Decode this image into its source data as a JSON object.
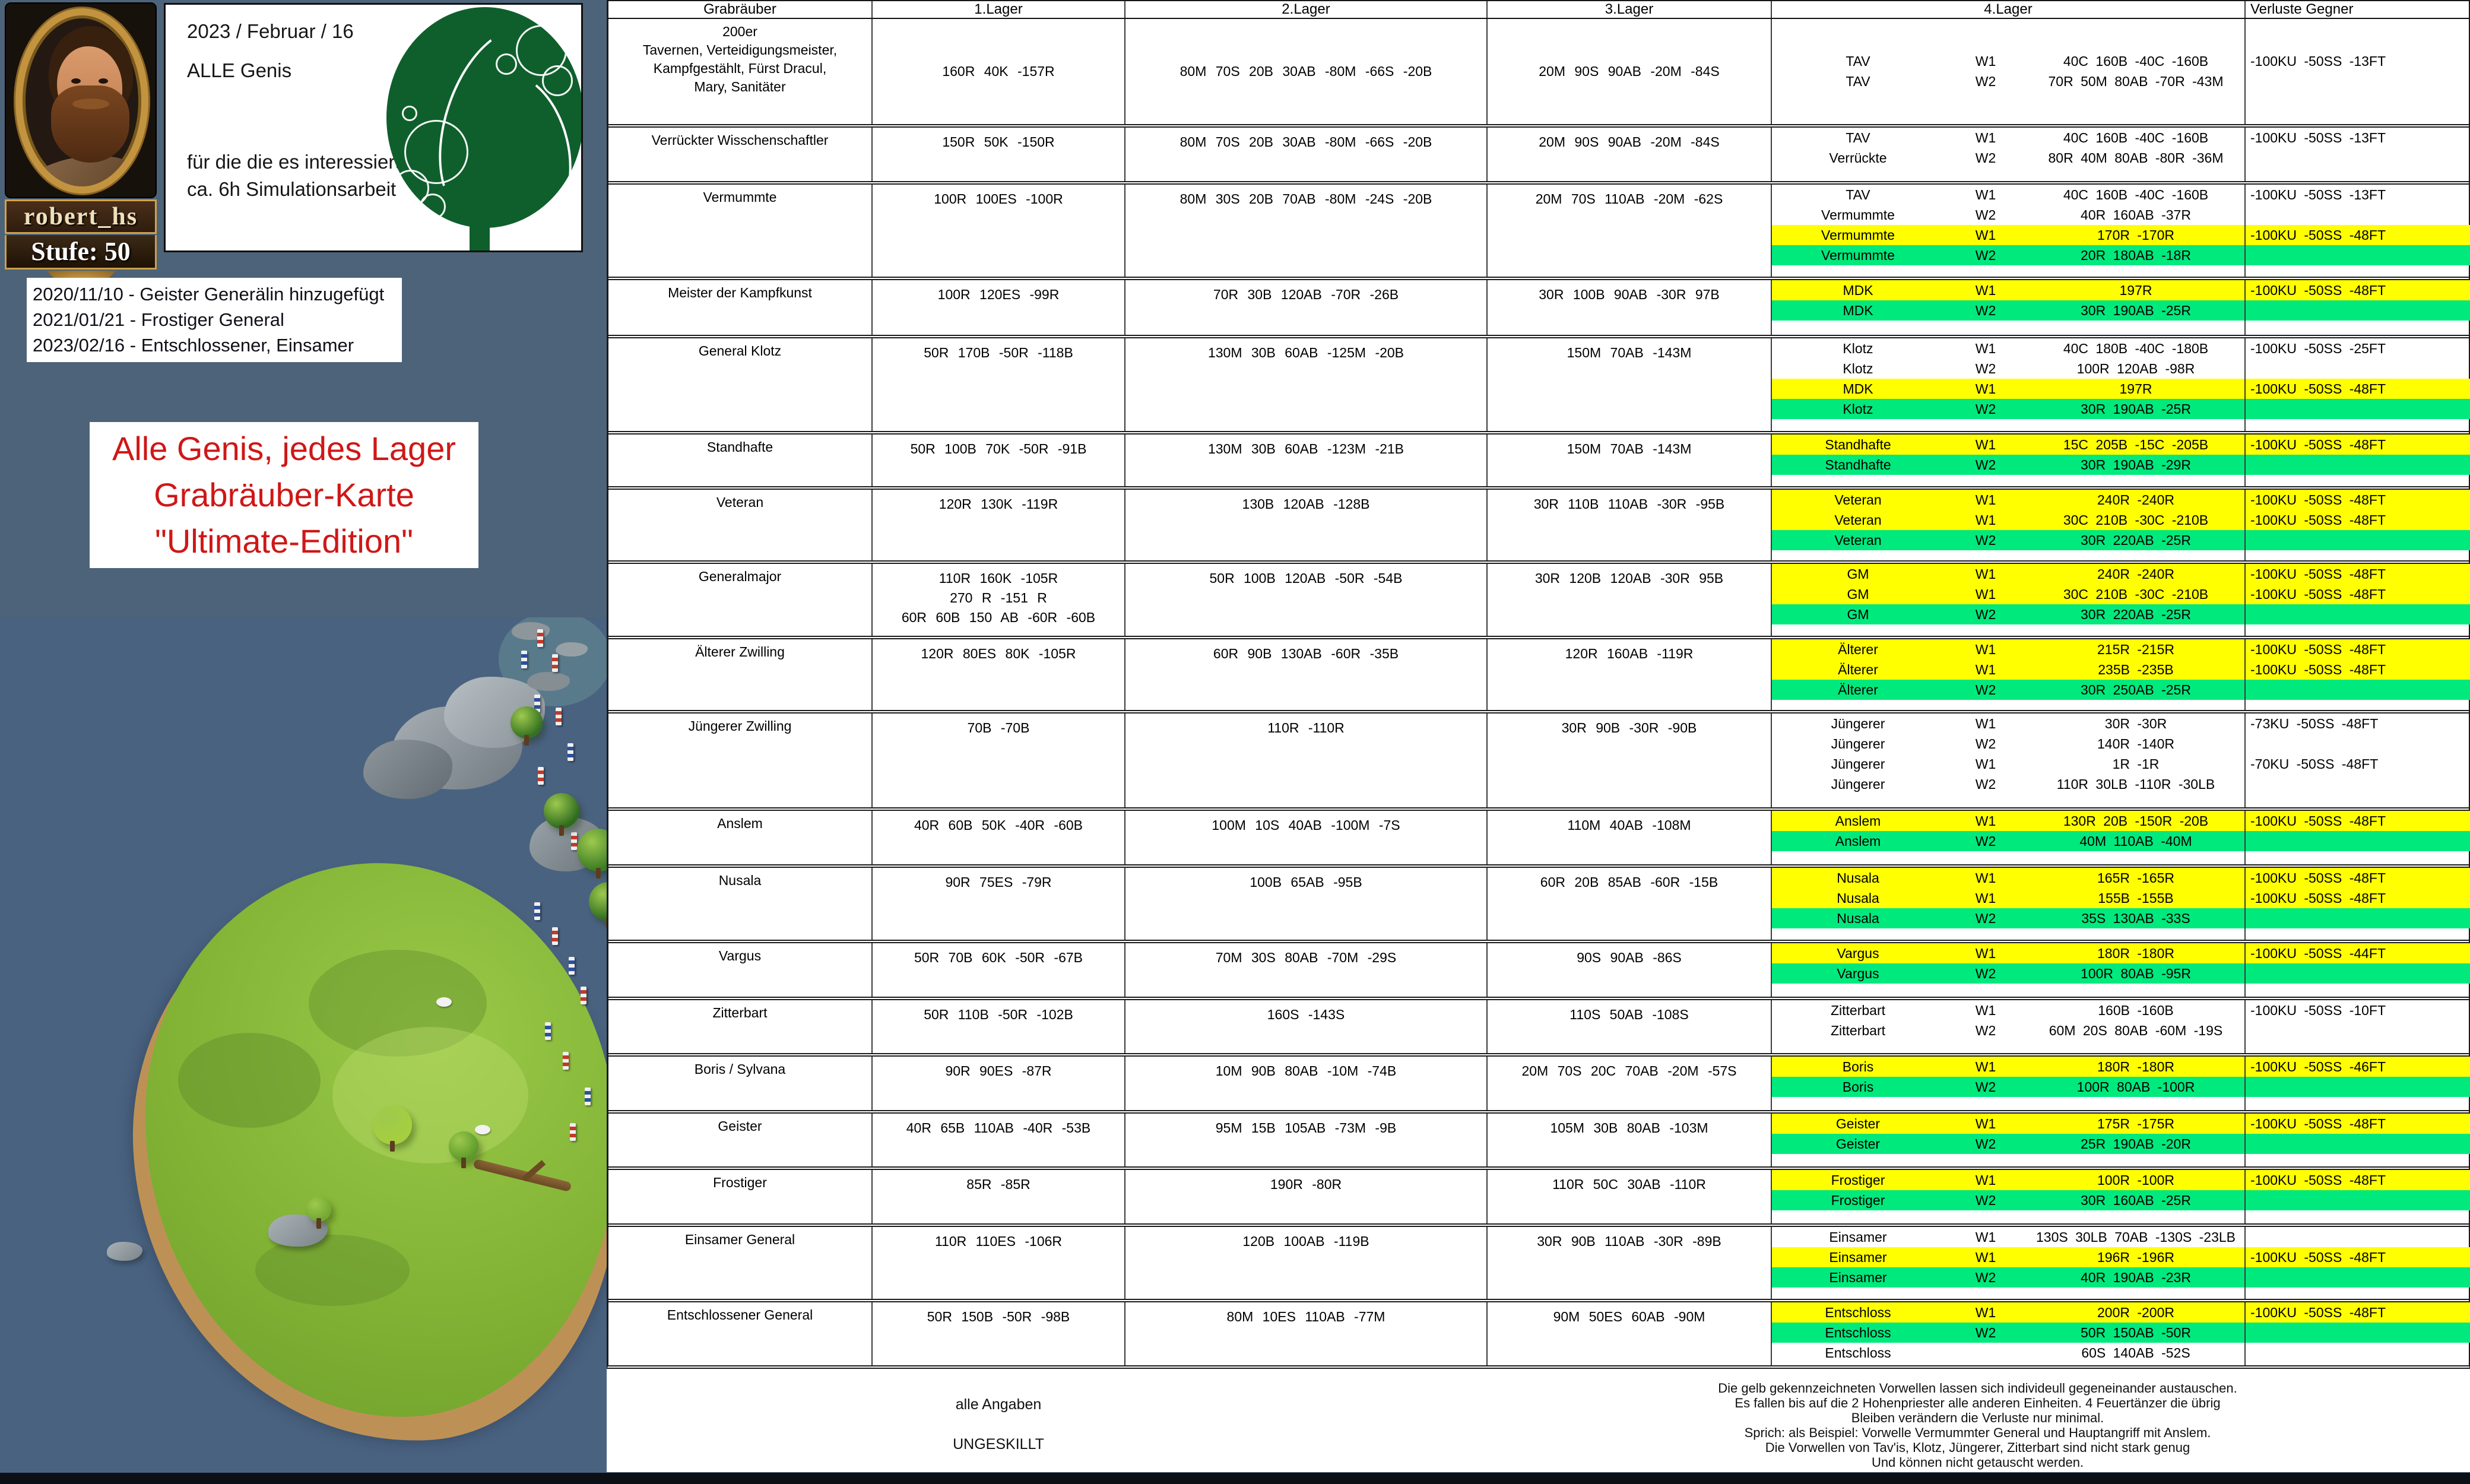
{
  "profile": {
    "username": "robert_hs",
    "level": "Stufe: 50"
  },
  "header_box": {
    "date": "2023 / Februar / 16",
    "subject": "ALLE Genis",
    "note1": "für die die es interessiert",
    "note2": "ca. 6h Simulationsarbeit"
  },
  "changelog": [
    "2020/11/10 - Geister Generälin hinzugefügt",
    "2021/01/21 - Frostiger General",
    "2023/02/16 - Entschlossener, Einsamer"
  ],
  "title_box": {
    "lines": [
      "Alle Genis, jedes Lager",
      "Grabräuber-Karte",
      "\"Ultimate-Edition\""
    ],
    "color": "#cf1717"
  },
  "colors": {
    "highlight_yellow": "#ffff00",
    "highlight_green": "#00e97d",
    "ocean": "#496280",
    "grass": "#82b335",
    "slate_background": "#4d6379"
  },
  "table": {
    "columns": [
      "Grabräuber",
      "1.Lager",
      "2.Lager",
      "3.Lager",
      "4.Lager",
      "Verluste Gegner"
    ],
    "rows": [
      {
        "name_lines": [
          "200er",
          "Tavernen,  Verteidigungsmeister,",
          "Kampfgestählt,  Fürst Dracul,",
          "Mary,   Sanitäter"
        ],
        "center": true,
        "lager1": [
          "160R  40K  -157R"
        ],
        "lager2": [
          "80M  70S  20B  30AB  -80M  -66S  -20B"
        ],
        "lager3": [
          "20M  90S  90AB  -20M  -84S"
        ],
        "waves": [
          {
            "gen": "TAV",
            "w": "W1",
            "val": "40C  160B  -40C  -160B",
            "hl": "w",
            "loss": "-100KU  -50SS  -13FT",
            "loss_hl": "w"
          },
          {
            "gen": "TAV",
            "w": "W2",
            "val": "70R  50M  80AB  -70R  -43M",
            "hl": "w",
            "loss": "",
            "loss_hl": "w"
          }
        ]
      },
      {
        "name_lines": [
          "Verrückter Wisschenschaftler"
        ],
        "lager1": [
          "150R  50K  -150R"
        ],
        "lager2": [
          "80M  70S  20B  30AB  -80M  -66S  -20B"
        ],
        "lager3": [
          "20M  90S  90AB  -20M  -84S"
        ],
        "waves": [
          {
            "gen": "TAV",
            "w": "W1",
            "val": "40C  160B  -40C  -160B",
            "hl": "w",
            "loss": "-100KU  -50SS  -13FT",
            "loss_hl": "w"
          },
          {
            "gen": "Verrückte",
            "w": "W2",
            "val": "80R  40M  80AB  -80R  -36M",
            "hl": "w",
            "loss": "",
            "loss_hl": "w"
          }
        ]
      },
      {
        "name_lines": [
          "Vermummte"
        ],
        "lager1": [
          "100R  100ES  -100R"
        ],
        "lager2": [
          "80M  30S  20B  70AB  -80M  -24S  -20B"
        ],
        "lager3": [
          "20M  70S  110AB  -20M  -62S"
        ],
        "waves": [
          {
            "gen": "TAV",
            "w": "W1",
            "val": "40C  160B  -40C  -160B",
            "hl": "w",
            "loss": "-100KU  -50SS  -13FT",
            "loss_hl": "w"
          },
          {
            "gen": "Vermummte",
            "w": "W2",
            "val": "40R  160AB  -37R",
            "hl": "w",
            "loss": "",
            "loss_hl": "w"
          },
          {
            "gen": "Vermummte",
            "w": "W1",
            "val": "170R  -170R",
            "hl": "y",
            "loss": "-100KU  -50SS  -48FT",
            "loss_hl": "y"
          },
          {
            "gen": "Vermummte",
            "w": "W2",
            "val": "20R  180AB  -18R",
            "hl": "g",
            "loss": "",
            "loss_hl": "g"
          }
        ]
      },
      {
        "name_lines": [
          "Meister der Kampfkunst"
        ],
        "lager1": [
          "100R  120ES  -99R"
        ],
        "lager2": [
          "70R  30B  120AB  -70R  -26B"
        ],
        "lager3": [
          "30R  100B  90AB  -30R  97B"
        ],
        "waves": [
          {
            "gen": "MDK",
            "w": "W1",
            "val": "197R",
            "hl": "y",
            "loss": "-100KU  -50SS  -48FT",
            "loss_hl": "y"
          },
          {
            "gen": "MDK",
            "w": "W2",
            "val": "30R  190AB  -25R",
            "hl": "g",
            "loss": "",
            "loss_hl": "g"
          }
        ]
      },
      {
        "name_lines": [
          "General Klotz"
        ],
        "lager1": [
          "50R  170B  -50R  -118B"
        ],
        "lager2": [
          "130M  30B  60AB  -125M  -20B"
        ],
        "lager3": [
          "150M  70AB  -143M"
        ],
        "waves": [
          {
            "gen": "Klotz",
            "w": "W1",
            "val": "40C  180B  -40C  -180B",
            "hl": "w",
            "loss": "-100KU  -50SS  -25FT",
            "loss_hl": "w"
          },
          {
            "gen": "Klotz",
            "w": "W2",
            "val": "100R  120AB  -98R",
            "hl": "w",
            "loss": "",
            "loss_hl": "w"
          },
          {
            "gen": "MDK",
            "w": "W1",
            "val": "197R",
            "hl": "y",
            "loss": "-100KU  -50SS  -48FT",
            "loss_hl": "y"
          },
          {
            "gen": "Klotz",
            "w": "W2",
            "val": "30R  190AB  -25R",
            "hl": "g",
            "loss": "",
            "loss_hl": "g"
          }
        ]
      },
      {
        "name_lines": [
          "Standhafte"
        ],
        "lager1": [
          "50R  100B  70K  -50R  -91B"
        ],
        "lager2": [
          "130M  30B  60AB  -123M  -21B"
        ],
        "lager3": [
          "150M  70AB  -143M"
        ],
        "waves": [
          {
            "gen": "Standhafte",
            "w": "W1",
            "val": "15C  205B  -15C  -205B",
            "hl": "y",
            "loss": "-100KU  -50SS  -48FT",
            "loss_hl": "y"
          },
          {
            "gen": "Standhafte",
            "w": "W2",
            "val": "30R  190AB  -29R",
            "hl": "g",
            "loss": "",
            "loss_hl": "g"
          }
        ]
      },
      {
        "name_lines": [
          "Veteran"
        ],
        "lager1": [
          "120R  130K  -119R"
        ],
        "lager2": [
          "130B  120AB  -128B"
        ],
        "lager3": [
          "30R  110B  110AB  -30R  -95B"
        ],
        "waves": [
          {
            "gen": "Veteran",
            "w": "W1",
            "val": "240R  -240R",
            "hl": "y",
            "loss": "-100KU  -50SS  -48FT",
            "loss_hl": "y"
          },
          {
            "gen": "Veteran",
            "w": "W1",
            "val": "30C  210B  -30C  -210B",
            "hl": "y",
            "loss": "-100KU  -50SS  -48FT",
            "loss_hl": "y"
          },
          {
            "gen": "Veteran",
            "w": "W2",
            "val": "30R  220AB  -25R",
            "hl": "g",
            "loss": "",
            "loss_hl": "g"
          }
        ]
      },
      {
        "name_lines": [
          "Generalmajor"
        ],
        "lager1": [
          "110R  160K  -105R",
          "270 R  -151 R",
          "60R  60B  150 AB  -60R  -60B"
        ],
        "lager2": [
          "50R  100B  120AB  -50R  -54B"
        ],
        "lager3": [
          "30R  120B  120AB  -30R  95B"
        ],
        "waves": [
          {
            "gen": "GM",
            "w": "W1",
            "val": "240R  -240R",
            "hl": "y",
            "loss": "-100KU  -50SS  -48FT",
            "loss_hl": "y"
          },
          {
            "gen": "GM",
            "w": "W1",
            "val": "30C  210B  -30C  -210B",
            "hl": "y",
            "loss": "-100KU  -50SS  -48FT",
            "loss_hl": "y"
          },
          {
            "gen": "GM",
            "w": "W2",
            "val": "30R  220AB  -25R",
            "hl": "g",
            "loss": "",
            "loss_hl": "g"
          }
        ]
      },
      {
        "name_lines": [
          "Älterer Zwilling"
        ],
        "lager1": [
          "120R  80ES  80K  -105R"
        ],
        "lager2": [
          "60R  90B  130AB  -60R  -35B"
        ],
        "lager3": [
          "120R  160AB  -119R"
        ],
        "waves": [
          {
            "gen": "Älterer",
            "w": "W1",
            "val": "215R  -215R",
            "hl": "y",
            "loss": "-100KU  -50SS  -48FT",
            "loss_hl": "y"
          },
          {
            "gen": "Älterer",
            "w": "W1",
            "val": "235B  -235B",
            "hl": "y",
            "loss": "-100KU  -50SS  -48FT",
            "loss_hl": "y"
          },
          {
            "gen": "Älterer",
            "w": "W2",
            "val": "30R  250AB  -25R",
            "hl": "g",
            "loss": "",
            "loss_hl": "g"
          }
        ]
      },
      {
        "name_lines": [
          "Jüngerer Zwilling"
        ],
        "lager1": [
          "70B  -70B"
        ],
        "lager2": [
          "110R  -110R"
        ],
        "lager3": [
          "30R  90B  -30R  -90B"
        ],
        "waves": [
          {
            "gen": "Jüngerer",
            "w": "W1",
            "val": "30R  -30R",
            "hl": "w",
            "loss": "-73KU  -50SS  -48FT",
            "loss_hl": "w"
          },
          {
            "gen": "Jüngerer",
            "w": "W2",
            "val": "140R  -140R",
            "hl": "w",
            "loss": "",
            "loss_hl": "w"
          },
          {
            "gen": "Jüngerer",
            "w": "W1",
            "val": "1R  -1R",
            "hl": "w",
            "loss": "-70KU  -50SS  -48FT",
            "loss_hl": "w"
          },
          {
            "gen": "Jüngerer",
            "w": "W2",
            "val": "110R  30LB  -110R  -30LB",
            "hl": "w",
            "loss": "",
            "loss_hl": "w"
          }
        ]
      },
      {
        "name_lines": [
          "Anslem"
        ],
        "lager1": [
          "40R  60B  50K  -40R   -60B"
        ],
        "lager2": [
          "100M  10S  40AB  -100M  -7S"
        ],
        "lager3": [
          "110M  40AB  -108M"
        ],
        "waves": [
          {
            "gen": "Anslem",
            "w": "W1",
            "val": "130R  20B  -150R  -20B",
            "hl": "y",
            "loss": "-100KU  -50SS  -48FT",
            "loss_hl": "y"
          },
          {
            "gen": "Anslem",
            "w": "W2",
            "val": "40M  110AB  -40M",
            "hl": "g",
            "loss": "",
            "loss_hl": "g"
          }
        ]
      },
      {
        "name_lines": [
          "Nusala"
        ],
        "lager1": [
          "90R  75ES  -79R"
        ],
        "lager2": [
          "100B  65AB  -95B"
        ],
        "lager3": [
          "60R  20B  85AB  -60R  -15B"
        ],
        "waves": [
          {
            "gen": "Nusala",
            "w": "W1",
            "val": "165R  -165R",
            "hl": "y",
            "loss": "-100KU  -50SS  -48FT",
            "loss_hl": "y"
          },
          {
            "gen": "Nusala",
            "w": "W1",
            "val": "155B  -155B",
            "hl": "y",
            "loss": "-100KU  -50SS  -48FT",
            "loss_hl": "y"
          },
          {
            "gen": "Nusala",
            "w": "W2",
            "val": "35S  130AB  -33S",
            "hl": "g",
            "loss": "",
            "loss_hl": "g"
          }
        ]
      },
      {
        "name_lines": [
          "Vargus"
        ],
        "lager1": [
          "50R  70B  60K  -50R  -67B"
        ],
        "lager2": [
          "70M  30S  80AB  -70M  -29S"
        ],
        "lager3": [
          "90S  90AB  -86S"
        ],
        "waves": [
          {
            "gen": "Vargus",
            "w": "W1",
            "val": "180R  -180R",
            "hl": "y",
            "loss": "-100KU  -50SS  -44FT",
            "loss_hl": "y"
          },
          {
            "gen": "Vargus",
            "w": "W2",
            "val": "100R  80AB  -95R",
            "hl": "g",
            "loss": "",
            "loss_hl": "g"
          }
        ]
      },
      {
        "name_lines": [
          "Zitterbart"
        ],
        "lager1": [
          "50R  110B  -50R  -102B"
        ],
        "lager2": [
          "160S  -143S"
        ],
        "lager3": [
          "110S  50AB  -108S"
        ],
        "waves": [
          {
            "gen": "Zitterbart",
            "w": "W1",
            "val": "160B  -160B",
            "hl": "w",
            "loss": "-100KU  -50SS  -10FT",
            "loss_hl": "w"
          },
          {
            "gen": "Zitterbart",
            "w": "W2",
            "val": "60M  20S  80AB  -60M  -19S",
            "hl": "w",
            "loss": "",
            "loss_hl": "w"
          }
        ]
      },
      {
        "name_lines": [
          "Boris / Sylvana"
        ],
        "lager1": [
          "90R  90ES  -87R"
        ],
        "lager2": [
          "10M  90B  80AB  -10M  -74B"
        ],
        "lager3": [
          "20M  70S  20C  70AB  -20M  -57S"
        ],
        "waves": [
          {
            "gen": "Boris",
            "w": "W1",
            "val": "180R  -180R",
            "hl": "y",
            "loss": "-100KU  -50SS  -46FT",
            "loss_hl": "y"
          },
          {
            "gen": "Boris",
            "w": "W2",
            "val": "100R  80AB  -100R",
            "hl": "g",
            "loss": "",
            "loss_hl": "g"
          }
        ]
      },
      {
        "name_lines": [
          "Geister"
        ],
        "lager1": [
          "40R  65B  110AB  -40R  -53B"
        ],
        "lager2": [
          "95M  15B  105AB  -73M  -9B"
        ],
        "lager3": [
          "105M  30B  80AB  -103M"
        ],
        "waves": [
          {
            "gen": "Geister",
            "w": "W1",
            "val": "175R  -175R",
            "hl": "y",
            "loss": "-100KU  -50SS  -48FT",
            "loss_hl": "y"
          },
          {
            "gen": "Geister",
            "w": "W2",
            "val": "25R  190AB  -20R",
            "hl": "g",
            "loss": "",
            "loss_hl": "g"
          }
        ]
      },
      {
        "name_lines": [
          "Frostiger"
        ],
        "lager1": [
          "85R  -85R"
        ],
        "lager2": [
          "190R  -80R"
        ],
        "lager3": [
          "110R  50C  30AB  -110R"
        ],
        "waves": [
          {
            "gen": "Frostiger",
            "w": "W1",
            "val": "100R  -100R",
            "hl": "y",
            "loss": "-100KU  -50SS  -48FT",
            "loss_hl": "y"
          },
          {
            "gen": "Frostiger",
            "w": "W2",
            "val": "30R  160AB  -25R",
            "hl": "g",
            "loss": "",
            "loss_hl": "g"
          }
        ]
      },
      {
        "name_lines": [
          "Einsamer General"
        ],
        "lager1": [
          "110R  110ES  -106R"
        ],
        "lager2": [
          "120B  100AB  -119B"
        ],
        "lager3": [
          "30R  90B  110AB  -30R  -89B"
        ],
        "waves": [
          {
            "gen": "Einsamer",
            "w": "W1",
            "val": "130S  30LB  70AB  -130S   -23LB",
            "hl": "w",
            "loss": "",
            "loss_hl": "w"
          },
          {
            "gen": "Einsamer",
            "w": "W1",
            "val": "196R  -196R",
            "hl": "y",
            "loss": "-100KU  -50SS  -48FT",
            "loss_hl": "y"
          },
          {
            "gen": "Einsamer",
            "w": "W2",
            "val": "40R  190AB  -23R",
            "hl": "g",
            "loss": "",
            "loss_hl": "g"
          }
        ]
      },
      {
        "name_lines": [
          "Entschlossener General"
        ],
        "lager1": [
          "50R  150B  -50R  -98B"
        ],
        "lager2": [
          "80M  10ES  110AB  -77M"
        ],
        "lager3": [
          "90M  50ES  60AB  -90M"
        ],
        "waves": [
          {
            "gen": "Entschloss",
            "w": "W1",
            "val": "200R  -200R",
            "hl": "y",
            "loss": "-100KU  -50SS  -48FT",
            "loss_hl": "y"
          },
          {
            "gen": "Entschloss",
            "w": "W2",
            "val": "50R  150AB  -50R",
            "hl": "g",
            "loss": "",
            "loss_hl": "g"
          },
          {
            "gen": "Entschloss",
            "w": "",
            "val": "60S  140AB  -52S",
            "hl": "w",
            "loss": "",
            "loss_hl": "w"
          }
        ]
      }
    ]
  },
  "footnotes": {
    "left": [
      "alle Angaben",
      "UNGESKILLT"
    ],
    "right": [
      "Die gelb gekennzeichneten Vorwellen lassen sich individeull gegeneinander austauschen.",
      "Es fallen bis auf die 2 Hohenpriester alle anderen Einheiten. 4 Feuertänzer die übrig",
      "Bleiben verändern die Verluste nur minimal.",
      "Sprich: als Beispiel: Vorwelle Vermummter General und Hauptangriff mit Anslem.",
      "Die Vorwellen von Tav'is, Klotz, Jüngerer, Zitterbart sind nicht stark genug",
      "Und können nicht getauscht werden."
    ]
  }
}
